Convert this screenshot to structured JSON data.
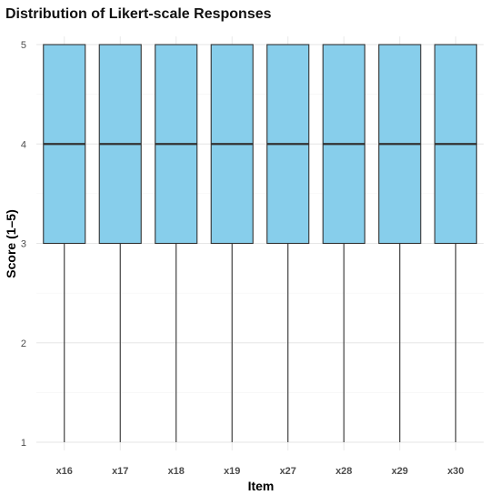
{
  "chart_data": {
    "type": "boxplot",
    "title": "Distribution of Likert-scale Responses",
    "xlabel": "Item",
    "ylabel": "Score (1–5)",
    "categories": [
      "x16",
      "x17",
      "x18",
      "x19",
      "x27",
      "x28",
      "x29",
      "x30"
    ],
    "boxes": [
      {
        "min": 1,
        "q1": 3,
        "median": 4,
        "q3": 5,
        "max": 5
      },
      {
        "min": 1,
        "q1": 3,
        "median": 4,
        "q3": 5,
        "max": 5
      },
      {
        "min": 1,
        "q1": 3,
        "median": 4,
        "q3": 5,
        "max": 5
      },
      {
        "min": 1,
        "q1": 3,
        "median": 4,
        "q3": 5,
        "max": 5
      },
      {
        "min": 1,
        "q1": 3,
        "median": 4,
        "q3": 5,
        "max": 5
      },
      {
        "min": 1,
        "q1": 3,
        "median": 4,
        "q3": 5,
        "max": 5
      },
      {
        "min": 1,
        "q1": 3,
        "median": 4,
        "q3": 5,
        "max": 5
      },
      {
        "min": 1,
        "q1": 3,
        "median": 4,
        "q3": 5,
        "max": 5
      }
    ],
    "yticks": [
      1,
      2,
      3,
      4,
      5
    ],
    "ylim": [
      1,
      5
    ],
    "grid": true,
    "legend": "none",
    "colors": {
      "box_fill": "#87CEEB",
      "box_stroke": "#333333"
    }
  }
}
